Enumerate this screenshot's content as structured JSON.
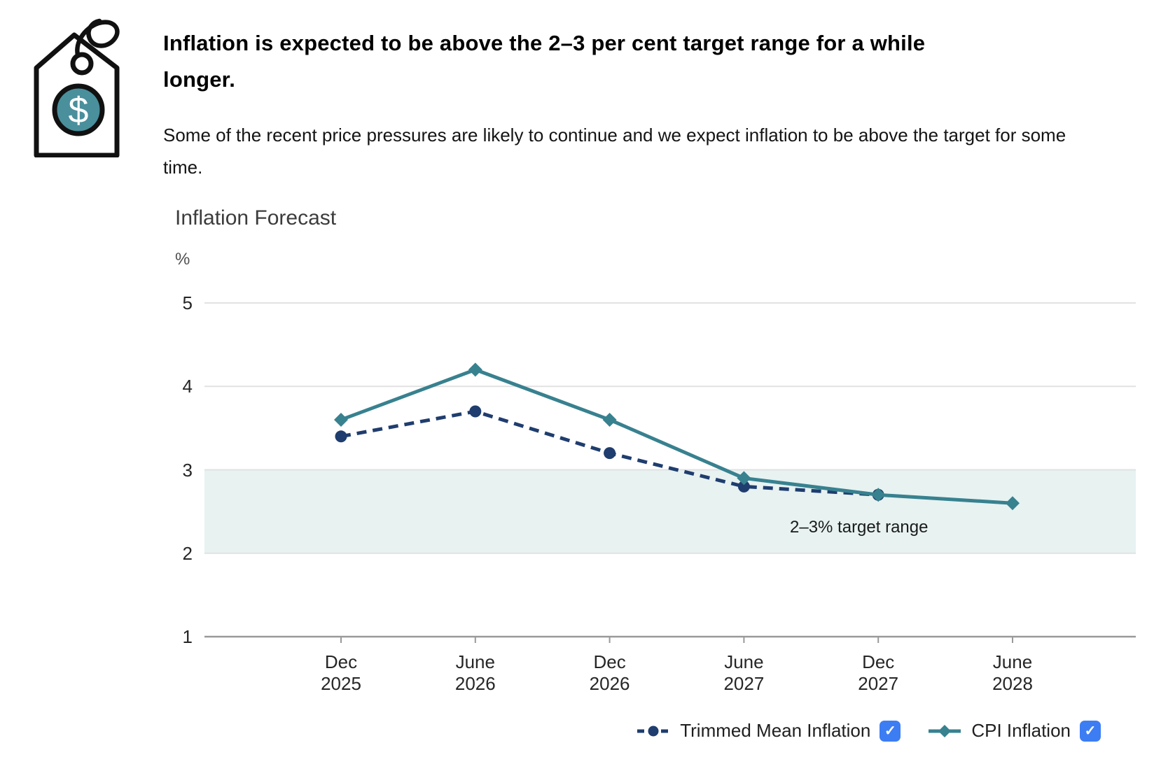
{
  "header": {
    "heading": "Inflation is expected to be above the 2–3 per cent target range for a while longer.",
    "body": "Some of the recent price pressures are likely to continue and we expect inflation to be above the target for some time."
  },
  "icon": {
    "name": "price-tag-icon",
    "dollar_sign": "$",
    "tag_fill": "#ffffff",
    "outline": "#111111",
    "badge_fill": "#4A8F9C"
  },
  "chart_data": {
    "type": "line",
    "title": "Inflation Forecast",
    "ylabel": "%",
    "xlabel": "",
    "grid": true,
    "legend_position": "bottom-right",
    "ylim": [
      1,
      5.4
    ],
    "y_ticks": [
      5,
      4,
      3,
      2,
      1
    ],
    "categories": [
      "Dec 2025",
      "June 2026",
      "Dec 2026",
      "June 2027",
      "Dec 2027",
      "June 2028"
    ],
    "series": [
      {
        "name": "Trimmed Mean Inflation",
        "values": [
          3.4,
          3.7,
          3.2,
          2.8,
          2.7,
          null
        ],
        "color": "#1F3D6E",
        "style": "dashed",
        "marker": "circle",
        "checked": true
      },
      {
        "name": "CPI Inflation",
        "values": [
          3.6,
          4.2,
          3.6,
          2.9,
          2.7,
          2.6
        ],
        "color": "#38818F",
        "style": "solid",
        "marker": "diamond",
        "checked": true
      }
    ],
    "band": {
      "from": 2,
      "to": 3,
      "label": "2–3% target range",
      "color": "#E7F2F1"
    }
  },
  "legend": {
    "check_glyph": "✓",
    "checkbox_color": "#3D7DF4"
  },
  "colors": {
    "gridline": "#E2E2E2",
    "axis": "#999999",
    "tick_text": "#262626"
  }
}
